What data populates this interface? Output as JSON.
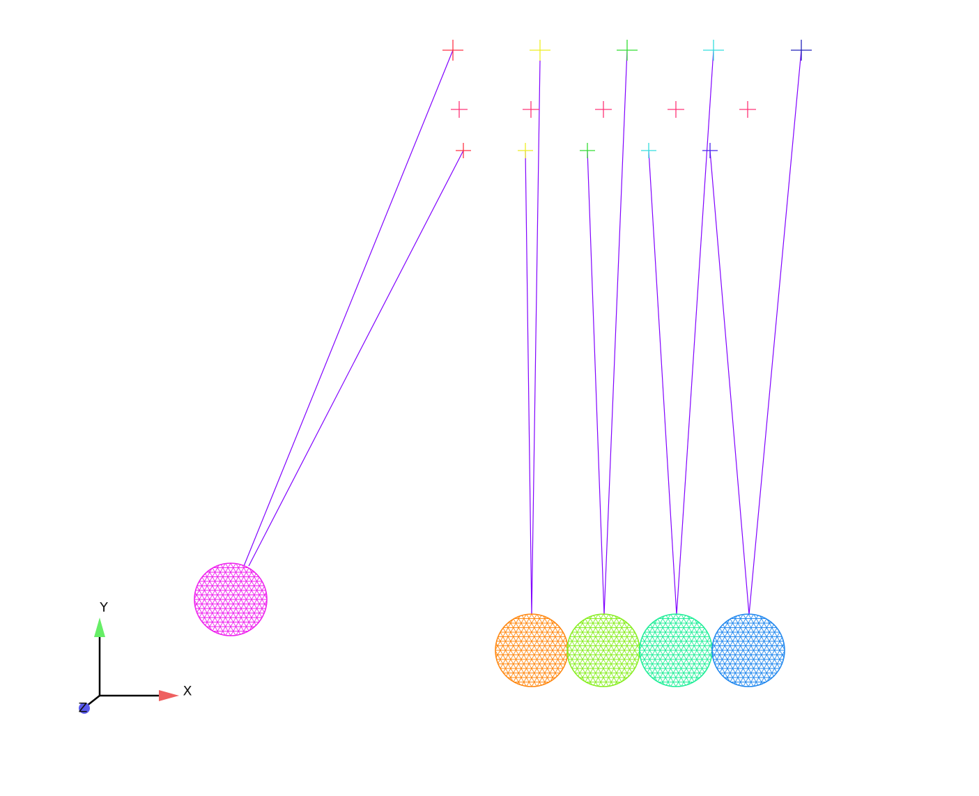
{
  "axes": {
    "x": "X",
    "y": "Y",
    "z": "Z"
  }
}
